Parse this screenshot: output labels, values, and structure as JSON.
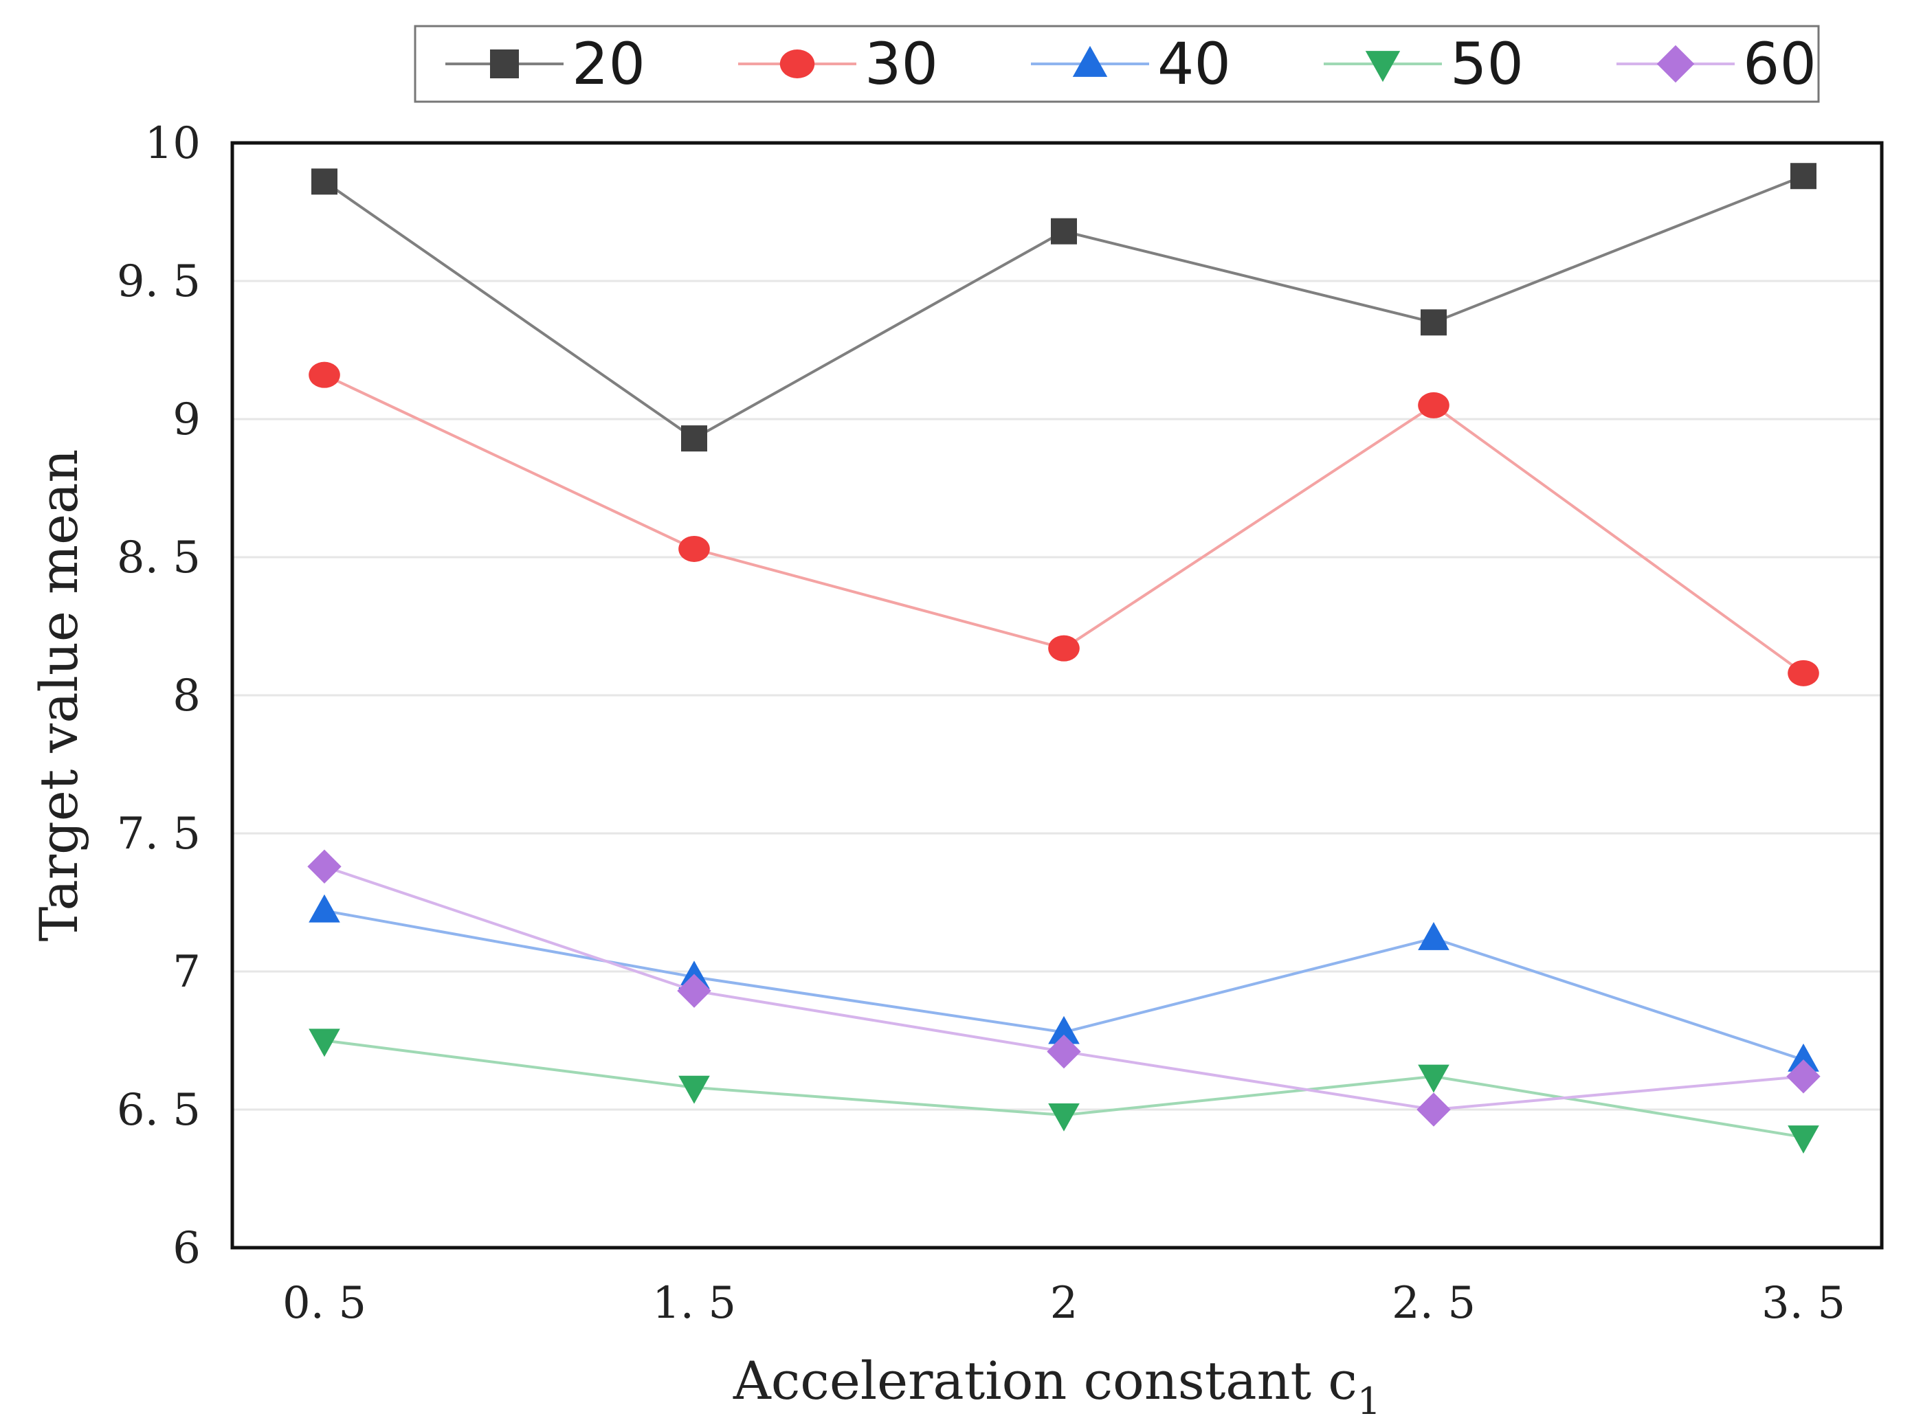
{
  "chart_data": {
    "type": "line",
    "title": "",
    "categories": [
      "0. 5",
      "1. 5",
      "2",
      "2. 5",
      "3. 5"
    ],
    "xlabel": "Acceleration constant c",
    "xlabel_subscript": "1",
    "ylabel": "Target value mean",
    "ylim": [
      6,
      10
    ],
    "yticks": [
      6,
      6.5,
      7,
      7.5,
      8,
      8.5,
      9,
      9.5,
      10
    ],
    "ytick_labels": [
      "6",
      "6. 5",
      "7",
      "7. 5",
      "8",
      "8. 5",
      "9",
      "9. 5",
      "10"
    ],
    "grid": true,
    "legend_position": "top",
    "series": [
      {
        "name": "20",
        "color": "#7f7f7f",
        "marker_color": "#404040",
        "marker": "square",
        "values": [
          9.86,
          8.93,
          9.68,
          9.35,
          9.88
        ]
      },
      {
        "name": "30",
        "color": "#f4a3a3",
        "marker_color": "#f03c3c",
        "marker": "circle",
        "values": [
          9.16,
          8.53,
          8.17,
          9.05,
          8.08
        ]
      },
      {
        "name": "40",
        "color": "#8fb4ef",
        "marker_color": "#1f6ee0",
        "marker": "triangle-up",
        "values": [
          7.22,
          6.98,
          6.78,
          7.12,
          6.68
        ]
      },
      {
        "name": "50",
        "color": "#9fd9b4",
        "marker_color": "#2eaa60",
        "marker": "triangle-down",
        "values": [
          6.75,
          6.58,
          6.48,
          6.62,
          6.4
        ]
      },
      {
        "name": "60",
        "color": "#d6b4ec",
        "marker_color": "#b174dc",
        "marker": "diamond",
        "values": [
          7.38,
          6.93,
          6.71,
          6.5,
          6.62
        ]
      }
    ]
  }
}
